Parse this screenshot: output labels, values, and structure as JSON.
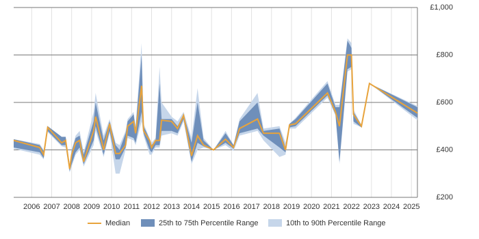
{
  "chart_data": {
    "type": "line",
    "x": [
      2005.1,
      2006.4,
      2006.6,
      2006.8,
      2007.5,
      2007.7,
      2007.9,
      2008.0,
      2008.2,
      2008.4,
      2008.6,
      2009.1,
      2009.2,
      2009.6,
      2009.9,
      2010.2,
      2010.4,
      2010.7,
      2010.8,
      2011.1,
      2011.2,
      2011.5,
      2011.6,
      2011.9,
      2012.0,
      2012.2,
      2012.4,
      2012.5,
      2013.0,
      2013.3,
      2013.6,
      2014.0,
      2014.3,
      2014.6,
      2015.1,
      2015.7,
      2016.1,
      2016.4,
      2017.3,
      2017.6,
      2018.4,
      2018.7,
      2018.9,
      2019.2,
      2020.8,
      2021.2,
      2021.4,
      2021.8,
      2022.0,
      2022.1,
      2022.5,
      2022.9,
      2025.3
    ],
    "series": [
      {
        "name": "10th to 90th Percentile Range",
        "color": "#c6d6ea",
        "low": [
          405,
          380,
          360,
          475,
          415,
          410,
          305,
          330,
          380,
          400,
          330,
          420,
          480,
          370,
          470,
          300,
          300,
          400,
          450,
          440,
          420,
          520,
          460,
          380,
          380,
          410,
          410,
          460,
          470,
          460,
          520,
          340,
          400,
          410,
          400,
          420,
          395,
          460,
          480,
          440,
          370,
          380,
          490,
          490,
          620,
          545,
          340,
          730,
          740,
          510,
          495,
          680,
          525
        ],
        "high": [
          445,
          425,
          400,
          500,
          455,
          455,
          340,
          400,
          460,
          480,
          390,
          560,
          640,
          460,
          530,
          430,
          420,
          480,
          530,
          560,
          500,
          850,
          510,
          450,
          430,
          450,
          750,
          600,
          540,
          520,
          560,
          450,
          660,
          450,
          400,
          480,
          420,
          530,
          640,
          490,
          500,
          430,
          510,
          535,
          690,
          590,
          590,
          870,
          850,
          570,
          505,
          680,
          585
        ]
      },
      {
        "name": "25th to 75th Percentile Range",
        "color": "#6f8fba",
        "low": [
          410,
          390,
          365,
          480,
          420,
          420,
          310,
          340,
          390,
          410,
          340,
          440,
          500,
          380,
          480,
          360,
          360,
          410,
          460,
          450,
          430,
          560,
          470,
          400,
          390,
          420,
          420,
          480,
          480,
          470,
          530,
          350,
          430,
          415,
          400,
          430,
          405,
          470,
          490,
          460,
          410,
          390,
          495,
          500,
          630,
          550,
          350,
          740,
          750,
          520,
          495,
          680,
          535
        ],
        "high": [
          445,
          420,
          395,
          500,
          455,
          455,
          330,
          395,
          450,
          460,
          380,
          520,
          600,
          440,
          520,
          420,
          400,
          470,
          520,
          550,
          490,
          800,
          500,
          445,
          420,
          440,
          680,
          530,
          530,
          500,
          550,
          430,
          600,
          440,
          400,
          470,
          420,
          520,
          600,
          480,
          490,
          410,
          510,
          530,
          680,
          580,
          580,
          860,
          830,
          560,
          505,
          680,
          580
        ]
      },
      {
        "name": "Median",
        "color": "#e8a33b",
        "values": [
          440,
          410,
          380,
          495,
          430,
          440,
          320,
          380,
          430,
          440,
          350,
          480,
          540,
          400,
          510,
          385,
          385,
          420,
          500,
          520,
          470,
          670,
          480,
          440,
          410,
          440,
          440,
          525,
          520,
          490,
          545,
          375,
          460,
          420,
          400,
          445,
          410,
          490,
          530,
          470,
          470,
          400,
          505,
          510,
          640,
          560,
          500,
          800,
          800,
          550,
          500,
          680,
          555
        ]
      }
    ],
    "xlim": [
      2005.1,
      2025.3
    ],
    "xticks": [
      2006,
      2007,
      2008,
      2009,
      2010,
      2011,
      2012,
      2013,
      2014,
      2015,
      2016,
      2017,
      2018,
      2019,
      2020,
      2021,
      2022,
      2023,
      2024,
      2025
    ],
    "ylim": [
      200,
      1000
    ],
    "yticks": [
      {
        "value": 200,
        "label": "£200"
      },
      {
        "value": 400,
        "label": "£400"
      },
      {
        "value": 600,
        "label": "£600"
      },
      {
        "value": 800,
        "label": "£800"
      },
      {
        "value": 1000,
        "label": "£1,000"
      }
    ],
    "legend": "bottom",
    "grid": true
  }
}
